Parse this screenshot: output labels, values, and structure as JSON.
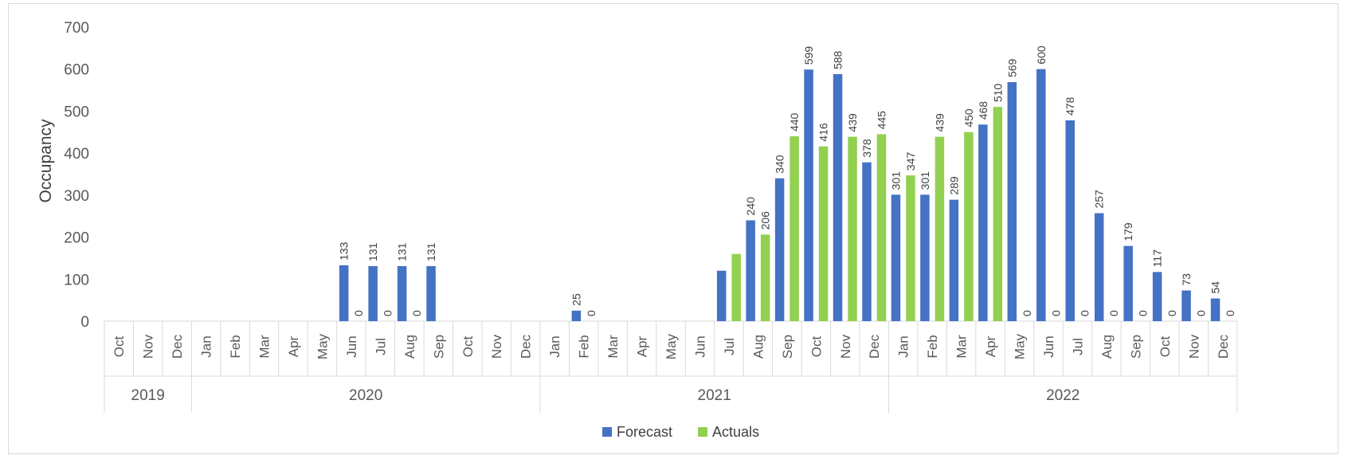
{
  "chart_data": {
    "type": "bar",
    "ylabel": "Occupancy",
    "ylim": [
      0,
      700
    ],
    "yticks": [
      "0",
      "100",
      "200",
      "300",
      "400",
      "500",
      "600",
      "700"
    ],
    "grid": false,
    "legend_position": "bottom",
    "years": [
      {
        "label": "2019",
        "count": 3
      },
      {
        "label": "2020",
        "count": 12
      },
      {
        "label": "2021",
        "count": 12
      },
      {
        "label": "2022",
        "count": 12
      }
    ],
    "categories": [
      "Oct",
      "Nov",
      "Dec",
      "Jan",
      "Feb",
      "Mar",
      "Apr",
      "May",
      "Jun",
      "Jul",
      "Aug",
      "Sep",
      "Oct",
      "Nov",
      "Dec",
      "Jan",
      "Feb",
      "Mar",
      "Apr",
      "May",
      "Jun",
      "Jul",
      "Aug",
      "Sep",
      "Oct",
      "Nov",
      "Dec",
      "Jan",
      "Feb",
      "Mar",
      "Apr",
      "May",
      "Jun",
      "Jul",
      "Aug",
      "Sep",
      "Oct",
      "Nov",
      "Dec"
    ],
    "series": [
      {
        "name": "Forecast",
        "color": "#4472C4",
        "values": [
          null,
          null,
          null,
          null,
          null,
          null,
          null,
          null,
          133,
          131,
          131,
          131,
          null,
          null,
          null,
          null,
          25,
          null,
          null,
          null,
          null,
          120,
          240,
          340,
          599,
          588,
          378,
          301,
          301,
          289,
          468,
          569,
          600,
          478,
          257,
          179,
          117,
          73,
          54
        ],
        "labels": [
          "",
          "",
          "",
          "",
          "",
          "",
          "",
          "",
          "133",
          "131",
          "131",
          "131",
          "",
          "",
          "",
          "",
          "25",
          "",
          "",
          "",
          "",
          "",
          "240",
          "340",
          "599",
          "588",
          "378",
          "301",
          "301",
          "289",
          "468",
          "569",
          "600",
          "478",
          "257",
          "179",
          "117",
          "73",
          "54"
        ]
      },
      {
        "name": "Actuals",
        "color": "#92D050",
        "values": [
          null,
          null,
          null,
          null,
          null,
          null,
          null,
          null,
          0,
          0,
          0,
          null,
          null,
          null,
          null,
          null,
          0,
          null,
          null,
          null,
          null,
          160,
          206,
          440,
          416,
          439,
          445,
          347,
          439,
          450,
          510,
          0,
          0,
          0,
          0,
          0,
          0,
          0,
          0
        ],
        "labels": [
          "",
          "",
          "",
          "",
          "",
          "",
          "",
          "",
          "0",
          "0",
          "0",
          "",
          "",
          "",
          "",
          "",
          "0",
          "",
          "",
          "",
          "",
          "",
          "206",
          "440",
          "416",
          "439",
          "445",
          "347",
          "439",
          "450",
          "510",
          "0",
          "0",
          "0",
          "0",
          "0",
          "0",
          "0",
          "0"
        ]
      }
    ]
  }
}
